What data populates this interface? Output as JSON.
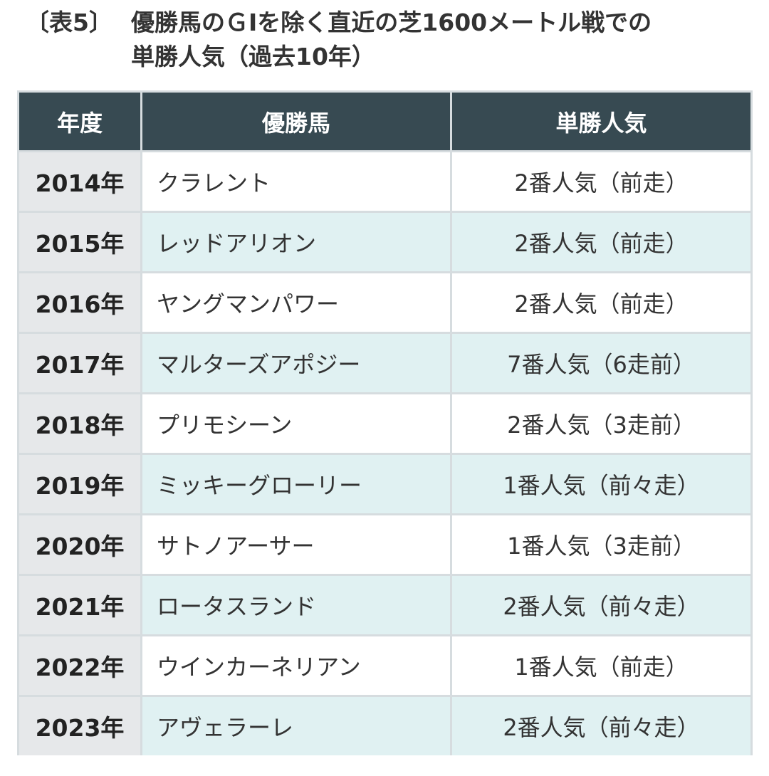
{
  "title": {
    "label": "〔表5〕",
    "line1": "優勝馬のＧⅠを除く直近の芝1600メートル戦での",
    "line2": "単勝人気（過去10年）"
  },
  "table": {
    "headers": [
      "年度",
      "優勝馬",
      "単勝人気"
    ],
    "rows": [
      {
        "year": "2014年",
        "horse": "クラレント",
        "popularity": "2番人気（前走）"
      },
      {
        "year": "2015年",
        "horse": "レッドアリオン",
        "popularity": "2番人気（前走）"
      },
      {
        "year": "2016年",
        "horse": "ヤングマンパワー",
        "popularity": "2番人気（前走）"
      },
      {
        "year": "2017年",
        "horse": "マルターズアポジー",
        "popularity": "7番人気（6走前）"
      },
      {
        "year": "2018年",
        "horse": "プリモシーン",
        "popularity": "2番人気（3走前）"
      },
      {
        "year": "2019年",
        "horse": "ミッキーグローリー",
        "popularity": "1番人気（前々走）"
      },
      {
        "year": "2020年",
        "horse": "サトノアーサー",
        "popularity": "1番人気（3走前）"
      },
      {
        "year": "2021年",
        "horse": "ロータスランド",
        "popularity": "2番人気（前々走）"
      },
      {
        "year": "2022年",
        "horse": "ウインカーネリアン",
        "popularity": "1番人気（前走）"
      },
      {
        "year": "2023年",
        "horse": "アヴェラーレ",
        "popularity": "2番人気（前々走）"
      }
    ]
  },
  "colors": {
    "header_bg": "#374a52",
    "header_text": "#ffffff",
    "year_bg": "#e6e8ea",
    "row_white": "#ffffff",
    "row_mint": "#e0f1f2",
    "grid_line": "#d6dcdf",
    "text": "#333333"
  }
}
